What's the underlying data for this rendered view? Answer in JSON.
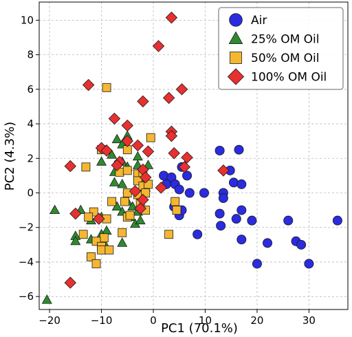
{
  "chart_data": {
    "type": "scatter",
    "xlabel": "PC1 (70.1%)",
    "ylabel": "PC2 (4.3%)",
    "xlim": [
      -22,
      37.5
    ],
    "ylim": [
      -6.75,
      11.05
    ],
    "xticks": [
      -20,
      -10,
      0,
      10,
      20,
      30
    ],
    "yticks": [
      -6,
      -4,
      -2,
      0,
      2,
      4,
      6,
      8,
      10
    ],
    "grid": true,
    "legend_position": "top-right",
    "series": [
      {
        "name": "Air",
        "marker": "circle",
        "color": "#2b2be0",
        "points": [
          [
            2,
            1
          ],
          [
            3.5,
            0.9
          ],
          [
            5.5,
            1.5
          ],
          [
            6.5,
            1
          ],
          [
            12.8,
            2.45
          ],
          [
            16.5,
            2.5
          ],
          [
            14.8,
            1.3
          ],
          [
            15.5,
            0.6
          ],
          [
            17,
            0.5
          ],
          [
            2.5,
            0.5
          ],
          [
            4.2,
            0.5
          ],
          [
            5,
            0.2
          ],
          [
            7,
            0
          ],
          [
            9.8,
            0
          ],
          [
            13.5,
            0
          ],
          [
            13.5,
            -0.3
          ],
          [
            4,
            -0.8
          ],
          [
            5,
            -1.3
          ],
          [
            5.5,
            -1
          ],
          [
            12.8,
            -1.2
          ],
          [
            17,
            -1
          ],
          [
            16,
            -1.5
          ],
          [
            19,
            -1.6
          ],
          [
            26,
            -1.6
          ],
          [
            35.5,
            -1.6
          ],
          [
            8.5,
            -2.4
          ],
          [
            13,
            -1.9
          ],
          [
            17,
            -2.7
          ],
          [
            22,
            -2.9
          ],
          [
            27.5,
            -2.8
          ],
          [
            28.5,
            -3
          ],
          [
            20,
            -4.1
          ],
          [
            30,
            -4.1
          ]
        ]
      },
      {
        "name": "25% OM Oil",
        "marker": "triangle",
        "color": "#2e8b2e",
        "points": [
          [
            -5,
            3.3
          ],
          [
            -7,
            3.1
          ],
          [
            -6,
            2.8
          ],
          [
            -9,
            2.5
          ],
          [
            -8,
            2.2
          ],
          [
            -3,
            2.1
          ],
          [
            -10,
            1.8
          ],
          [
            -6,
            1.8
          ],
          [
            -5,
            1.5
          ],
          [
            -3,
            1.6
          ],
          [
            -7.5,
            1.2
          ],
          [
            -6,
            0.5
          ],
          [
            -1.5,
            0.3
          ],
          [
            -1,
            1.6
          ],
          [
            -2,
            0.8
          ],
          [
            -5,
            -0.5
          ],
          [
            -7,
            -0.8
          ],
          [
            -4,
            -0.8
          ],
          [
            -6,
            -1.1
          ],
          [
            -3,
            -1.1
          ],
          [
            -19,
            -1
          ],
          [
            -14,
            -1
          ],
          [
            -10,
            -1.4
          ],
          [
            -12,
            -1.6
          ],
          [
            -4.5,
            -1.4
          ],
          [
            -3.5,
            -1.8
          ],
          [
            -9,
            -2.2
          ],
          [
            -10,
            -2.4
          ],
          [
            -15,
            -2.5
          ],
          [
            -15,
            -2.8
          ],
          [
            -12,
            -2.7
          ],
          [
            -9.5,
            -2.9
          ],
          [
            -6,
            -2.9
          ],
          [
            -20.5,
            -6.2
          ],
          [
            -7.5,
            0.6
          ],
          [
            -2.5,
            -1.6
          ]
        ]
      },
      {
        "name": "50% OM Oil",
        "marker": "square",
        "color": "#f5b731",
        "points": [
          [
            -9,
            6.1
          ],
          [
            -0.5,
            3.2
          ],
          [
            -10,
            2.5
          ],
          [
            -5,
            2.5
          ],
          [
            -13,
            1.5
          ],
          [
            -6.5,
            1.2
          ],
          [
            -5,
            1.3
          ],
          [
            -3,
            1.1
          ],
          [
            -2,
            1
          ],
          [
            -3,
            0.7
          ],
          [
            -2,
            0.4
          ],
          [
            -1,
            0.5
          ],
          [
            -5,
            0
          ],
          [
            -3,
            -0.1
          ],
          [
            -1.5,
            0
          ],
          [
            -2.5,
            -0.6
          ],
          [
            -1.5,
            -1
          ],
          [
            4.2,
            -0.5
          ],
          [
            -8,
            -0.5
          ],
          [
            -9,
            -1.5
          ],
          [
            -5,
            -1.4
          ],
          [
            -11.5,
            -1.1
          ],
          [
            -12.5,
            -1.4
          ],
          [
            -13.5,
            -2.4
          ],
          [
            -9.5,
            -2.6
          ],
          [
            -11,
            -2.8
          ],
          [
            -10,
            -3.1
          ],
          [
            -10,
            -3.3
          ],
          [
            -8.5,
            -3.3
          ],
          [
            -12,
            -3.7
          ],
          [
            -11,
            -4.1
          ],
          [
            4.5,
            -1
          ],
          [
            3,
            -2.4
          ],
          [
            -6,
            -2.3
          ],
          [
            -4.5,
            -1.3
          ],
          [
            -5.5,
            -0.5
          ]
        ]
      },
      {
        "name": "100% OM Oil",
        "marker": "diamond",
        "color": "#e83030",
        "points": [
          [
            3.5,
            10.15
          ],
          [
            1,
            8.5
          ],
          [
            -12.5,
            6.25
          ],
          [
            5.5,
            6
          ],
          [
            3,
            5.5
          ],
          [
            -2,
            5.3
          ],
          [
            -7.5,
            4.3
          ],
          [
            -5,
            3.9
          ],
          [
            3.5,
            3.55
          ],
          [
            3.5,
            3.3
          ],
          [
            -5,
            3
          ],
          [
            -10,
            2.6
          ],
          [
            -9,
            2.45
          ],
          [
            -3,
            2.75
          ],
          [
            4,
            2.3
          ],
          [
            -1,
            2.4
          ],
          [
            6.5,
            2.05
          ],
          [
            -6.5,
            1.8
          ],
          [
            -7,
            1.6
          ],
          [
            6,
            1.5
          ],
          [
            -16,
            1.55
          ],
          [
            -2,
            1.35
          ],
          [
            13.5,
            1.3
          ],
          [
            -1.5,
            0.9
          ],
          [
            1.5,
            0.3
          ],
          [
            -3.5,
            0.1
          ],
          [
            -2,
            -0.4
          ],
          [
            -2.5,
            -0.9
          ],
          [
            -15,
            -1.2
          ],
          [
            -10.5,
            -1.5
          ],
          [
            -16,
            -5.2
          ]
        ]
      }
    ]
  }
}
